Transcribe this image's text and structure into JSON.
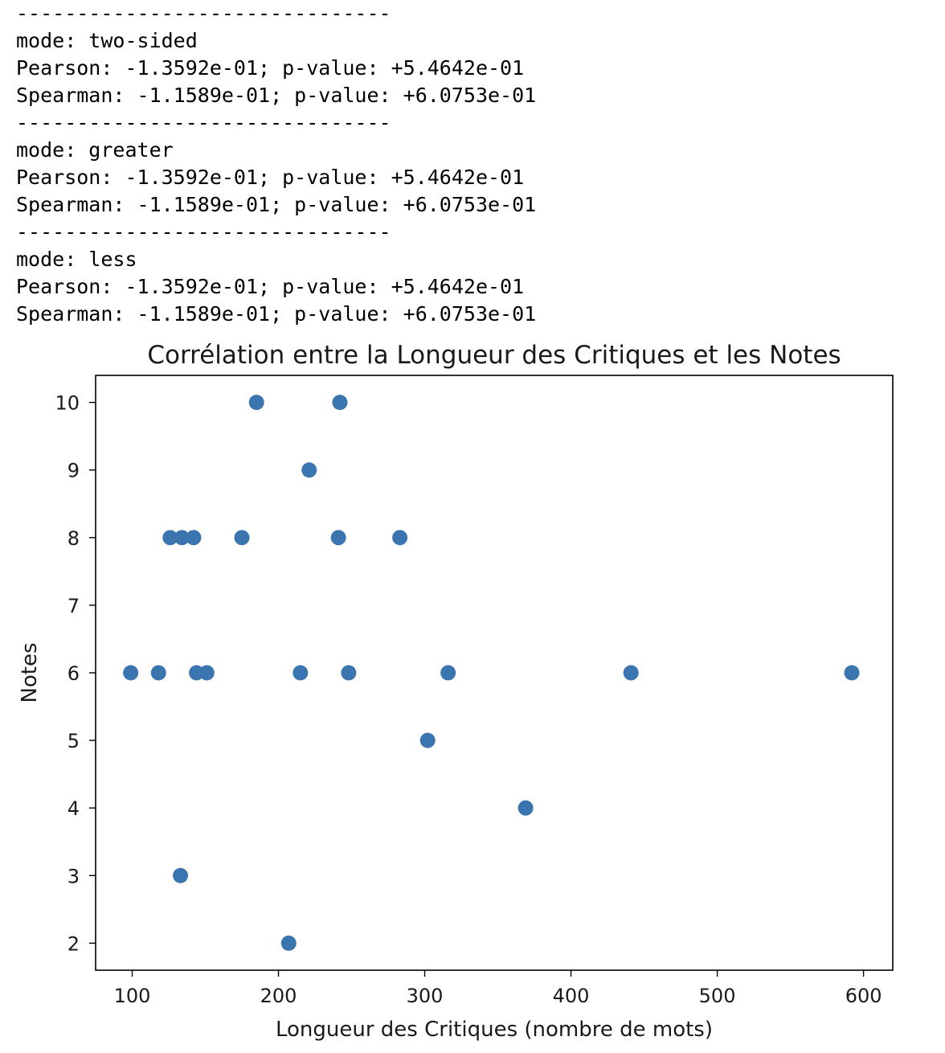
{
  "console": {
    "blocks": [
      {
        "separator": "-------------------------------",
        "mode_line": "mode: two-sided",
        "pearson_line": "Pearson: -1.3592e-01; p-value: +5.4642e-01",
        "spearman_line": "Spearman: -1.1589e-01; p-value: +6.0753e-01"
      },
      {
        "separator": "-------------------------------",
        "mode_line": "mode: greater",
        "pearson_line": "Pearson: -1.3592e-01; p-value: +5.4642e-01",
        "spearman_line": "Spearman: -1.1589e-01; p-value: +6.0753e-01"
      },
      {
        "separator": "-------------------------------",
        "mode_line": "mode: less",
        "pearson_line": "Pearson: -1.3592e-01; p-value: +5.4642e-01",
        "spearman_line": "Spearman: -1.1589e-01; p-value: +6.0753e-01"
      }
    ]
  },
  "chart_data": {
    "type": "scatter",
    "title": "Corrélation entre la Longueur des Critiques et les Notes",
    "xlabel": "Longueur des Critiques (nombre de mots)",
    "ylabel": "Notes",
    "xlim": [
      75,
      620
    ],
    "ylim": [
      1.6,
      10.4
    ],
    "xticks": [
      100,
      200,
      300,
      400,
      500,
      600
    ],
    "yticks": [
      2,
      3,
      4,
      5,
      6,
      7,
      8,
      9,
      10
    ],
    "grid": false,
    "marker_color": "#3a75b0",
    "series": [
      {
        "x": [
          99,
          118,
          144,
          151,
          215,
          248,
          316,
          441,
          592,
          126,
          134,
          142,
          175,
          241,
          283,
          185,
          242,
          221,
          302,
          369,
          133,
          207
        ],
        "y": [
          6,
          6,
          6,
          6,
          6,
          6,
          6,
          6,
          6,
          8,
          8,
          8,
          8,
          8,
          8,
          10,
          10,
          9,
          5,
          4,
          3,
          2
        ]
      }
    ]
  }
}
